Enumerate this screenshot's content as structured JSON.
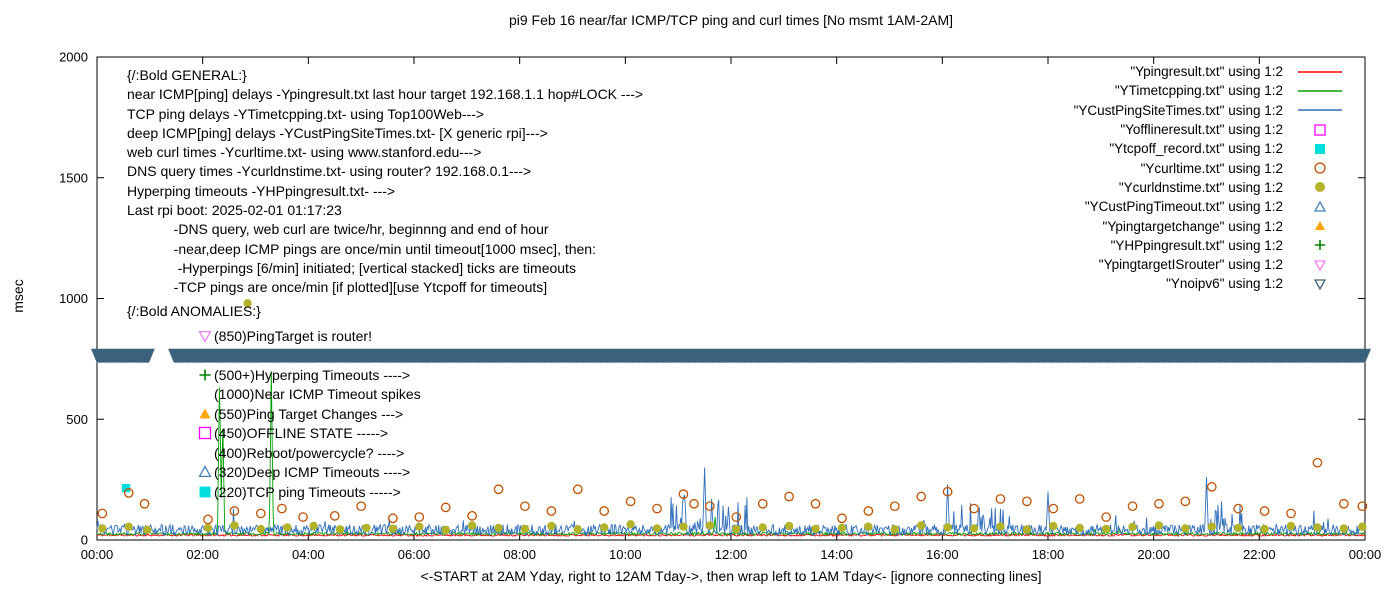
{
  "title": "pi9 Feb 16  near/far ICMP/TCP ping and curl times [No msmt 1AM-2AM]",
  "x_axis": {
    "label": "<-START at 2AM Yday, right to 12AM Tday->, then wrap left to 1AM Tday<- [ignore connecting lines]"
  },
  "y_axis": {
    "label": "msec"
  },
  "annotations": {
    "general_header": "{/:Bold GENERAL:}",
    "general": [
      "{/:Bold GENERAL:}",
      "near ICMP[ping] delays -Ypingresult.txt last hour target 192.168.1.1 hop#LOCK --->",
      "TCP ping delays -YTimetcpping.txt- using Top100Web--->",
      "deep ICMP[ping] delays -YCustPingSiteTimes.txt- [X generic rpi]--->",
      "web curl times -Ycurltime.txt- using www.stanford.edu--->",
      "DNS query times -Ycurldnstime.txt- using router? 192.168.0.1--->",
      "Hyperping timeouts -YHPpingresult.txt- --->",
      "Last rpi boot: 2025-02-01 01:17:23",
      "            -DNS query, web curl are twice/hr, beginnng and end of hour",
      "            -near,deep ICMP pings are once/min until timeout[1000 msec], then:",
      "             -Hyperpings [6/min] initiated; [vertical stacked] ticks are timeouts",
      "            -TCP pings are once/min [if plotted][use Ytcpoff for timeouts]"
    ],
    "anomalies_header": "{/:Bold ANOMALIES:}",
    "anomalies": [
      {
        "marker": "open-triangle-down",
        "color": "#ee82ee",
        "text": "(850)PingTarget is router!"
      },
      {
        "marker": null,
        "color": null,
        "text": ""
      },
      {
        "marker": "plus",
        "color": "#008000",
        "text": "(500+)Hyperping Timeouts ---->"
      },
      {
        "marker": null,
        "color": null,
        "text": "(1000)Near ICMP Timeout spikes"
      },
      {
        "marker": "filled-triangle-up",
        "color": "#ffa500",
        "text": "(550)Ping Target Changes --->"
      },
      {
        "marker": "open-square",
        "color": "#ff00ff",
        "text": "(450)OFFLINE STATE ----->"
      },
      {
        "marker": null,
        "color": null,
        "text": "(400)Reboot/powercycle? ---->"
      },
      {
        "marker": "open-triangle-up",
        "color": "#4682b4",
        "text": "(320)Deep ICMP Timeouts ---->"
      },
      {
        "marker": "filled-square",
        "color": "#00dede",
        "text": "(220)TCP ping Timeouts ----->"
      }
    ]
  },
  "chart_data": {
    "type": "line",
    "title": "pi9 Feb 16  near/far ICMP/TCP ping and curl times [No msmt 1AM-2AM]",
    "xlabel": "<-START at 2AM Yday, right to 12AM Tday->, then wrap left to 1AM Tday<- [ignore connecting lines]",
    "ylabel": "msec",
    "xlim_hours": [
      0,
      24
    ],
    "ylim": [
      0,
      2000
    ],
    "x_ticks": [
      "00:00",
      "02:00",
      "04:00",
      "06:00",
      "08:00",
      "10:00",
      "12:00",
      "14:00",
      "16:00",
      "18:00",
      "20:00",
      "22:00",
      "00:00"
    ],
    "y_ticks": [
      0,
      500,
      1000,
      1500,
      2000
    ],
    "grid": false,
    "legend_position": "top-right",
    "no_measurement_gap_hours": [
      1.0,
      1.45
    ],
    "band": {
      "series": "Ynoipv6",
      "y_top_msec": 792,
      "y_bottom_msec": 732,
      "color": "#3a627d"
    },
    "series": [
      {
        "label": "\"Ypingresult.txt\" using 1:2",
        "color": "#ff0000",
        "render": "line",
        "legend_sample": "line",
        "baseline": 20,
        "noise": 4,
        "seed": 11,
        "spike_prob": 0,
        "spike_amp": 0,
        "spikes": [],
        "bursts": []
      },
      {
        "label": "\"YTimetcpping.txt\" using 1:2",
        "color": "#00a000",
        "render": "line",
        "legend_sample": "line",
        "baseline": 26,
        "noise": 6,
        "seed": 22,
        "spike_prob": 0.006,
        "spike_amp": 25,
        "spikes": [
          [
            2.32,
            690
          ],
          [
            2.38,
            500
          ],
          [
            3.3,
            700
          ],
          [
            11.7,
            95
          ]
        ],
        "bursts": []
      },
      {
        "label": "\"YCustPingSiteTimes.txt\" using 1:2",
        "color": "#2f6eba",
        "render": "line",
        "legend_sample": "line",
        "baseline": 42,
        "noise": 22,
        "seed": 33,
        "spike_prob": 0.02,
        "spike_amp": 70,
        "spikes": [
          [
            11.5,
            300
          ],
          [
            16.1,
            230
          ],
          [
            18.0,
            200
          ],
          [
            21.0,
            260
          ]
        ],
        "bursts": [
          [
            10.8,
            12.3,
            190
          ],
          [
            12.9,
            13.25,
            130
          ],
          [
            16.0,
            17.3,
            160
          ],
          [
            20.9,
            21.7,
            170
          ],
          [
            23.2,
            23.6,
            90
          ]
        ]
      },
      {
        "label": "\"Yofflineresult.txt\" using 1:2",
        "color": "#ff00ff",
        "render": "points",
        "legend_sample": "open-square",
        "marker": "open-square",
        "points": []
      },
      {
        "label": "\"Ytcpoff_record.txt\" using 1:2",
        "color": "#00dede",
        "render": "points",
        "legend_sample": "filled-square",
        "marker": "filled-square",
        "points": [
          [
            0.55,
            215
          ]
        ]
      },
      {
        "label": "\"Ycurltime.txt\" using 1:2",
        "color": "#c05000",
        "render": "points",
        "legend_sample": "open-circle",
        "marker": "open-circle",
        "points": [
          [
            0.1,
            110
          ],
          [
            0.6,
            195
          ],
          [
            0.9,
            150
          ],
          [
            2.1,
            85
          ],
          [
            2.6,
            120
          ],
          [
            3.1,
            110
          ],
          [
            3.5,
            130
          ],
          [
            3.9,
            95
          ],
          [
            4.5,
            100
          ],
          [
            5.0,
            140
          ],
          [
            5.6,
            90
          ],
          [
            6.1,
            95
          ],
          [
            6.6,
            135
          ],
          [
            7.1,
            100
          ],
          [
            7.6,
            210
          ],
          [
            8.1,
            140
          ],
          [
            8.6,
            120
          ],
          [
            9.1,
            210
          ],
          [
            9.6,
            120
          ],
          [
            10.1,
            160
          ],
          [
            10.6,
            130
          ],
          [
            11.1,
            190
          ],
          [
            11.3,
            150
          ],
          [
            11.6,
            140
          ],
          [
            12.1,
            95
          ],
          [
            12.6,
            150
          ],
          [
            13.1,
            180
          ],
          [
            13.6,
            150
          ],
          [
            14.1,
            90
          ],
          [
            14.6,
            120
          ],
          [
            15.1,
            140
          ],
          [
            15.6,
            180
          ],
          [
            16.1,
            200
          ],
          [
            16.6,
            130
          ],
          [
            17.1,
            170
          ],
          [
            17.6,
            160
          ],
          [
            18.1,
            130
          ],
          [
            18.6,
            170
          ],
          [
            19.1,
            95
          ],
          [
            19.6,
            140
          ],
          [
            20.1,
            150
          ],
          [
            20.6,
            160
          ],
          [
            21.1,
            220
          ],
          [
            21.6,
            130
          ],
          [
            22.1,
            120
          ],
          [
            22.6,
            110
          ],
          [
            23.1,
            320
          ],
          [
            23.6,
            150
          ],
          [
            23.95,
            140
          ]
        ]
      },
      {
        "label": "\"Ycurldnstime.txt\" using 1:2",
        "color": "#b3b32a",
        "render": "points",
        "legend_sample": "filled-circle",
        "marker": "filled-circle",
        "points": [
          [
            0.1,
            48
          ],
          [
            0.6,
            55
          ],
          [
            0.95,
            42
          ],
          [
            2.1,
            50
          ],
          [
            2.6,
            60
          ],
          [
            2.85,
            980
          ],
          [
            3.1,
            45
          ],
          [
            3.6,
            52
          ],
          [
            4.1,
            58
          ],
          [
            4.6,
            44
          ],
          [
            5.1,
            50
          ],
          [
            5.6,
            47
          ],
          [
            6.1,
            55
          ],
          [
            6.6,
            42
          ],
          [
            7.1,
            60
          ],
          [
            7.6,
            50
          ],
          [
            8.1,
            46
          ],
          [
            8.6,
            58
          ],
          [
            9.1,
            44
          ],
          [
            9.6,
            52
          ],
          [
            10.1,
            65
          ],
          [
            10.6,
            48
          ],
          [
            11.1,
            55
          ],
          [
            11.6,
            60
          ],
          [
            12.1,
            45
          ],
          [
            12.6,
            52
          ],
          [
            13.1,
            58
          ],
          [
            13.6,
            46
          ],
          [
            14.1,
            50
          ],
          [
            14.6,
            55
          ],
          [
            15.1,
            44
          ],
          [
            15.6,
            60
          ],
          [
            16.1,
            52
          ],
          [
            16.6,
            48
          ],
          [
            17.1,
            56
          ],
          [
            17.6,
            44
          ],
          [
            18.1,
            58
          ],
          [
            18.6,
            50
          ],
          [
            19.1,
            46
          ],
          [
            19.6,
            54
          ],
          [
            20.1,
            60
          ],
          [
            20.6,
            48
          ],
          [
            21.1,
            55
          ],
          [
            21.6,
            50
          ],
          [
            22.1,
            46
          ],
          [
            22.6,
            58
          ],
          [
            23.1,
            52
          ],
          [
            23.6,
            48
          ],
          [
            23.95,
            55
          ]
        ]
      },
      {
        "label": "\"YCustPingTimeout.txt\" using 1:2",
        "color": "#4682b4",
        "render": "points",
        "legend_sample": "open-triangle-up",
        "marker": "open-triangle-up",
        "points": []
      },
      {
        "label": "\"Ypingtargetchange\" using 1:2",
        "color": "#ffa500",
        "render": "points",
        "legend_sample": "filled-triangle-up",
        "marker": "filled-triangle-up",
        "points": []
      },
      {
        "label": "\"YHPpingresult.txt\" using 1:2",
        "color": "#008000",
        "render": "points",
        "legend_sample": "plus",
        "marker": "plus",
        "points": []
      },
      {
        "label": "\"YpingtargetISrouter\" using 1:2",
        "color": "#ee82ee",
        "render": "points",
        "legend_sample": "open-triangle-down",
        "marker": "open-triangle-down",
        "points": []
      },
      {
        "label": "\"Ynoipv6\" using 1:2",
        "color": "#3a627d",
        "render": "band",
        "legend_sample": "open-triangle-down",
        "marker": "open-triangle-down",
        "points": []
      }
    ]
  }
}
